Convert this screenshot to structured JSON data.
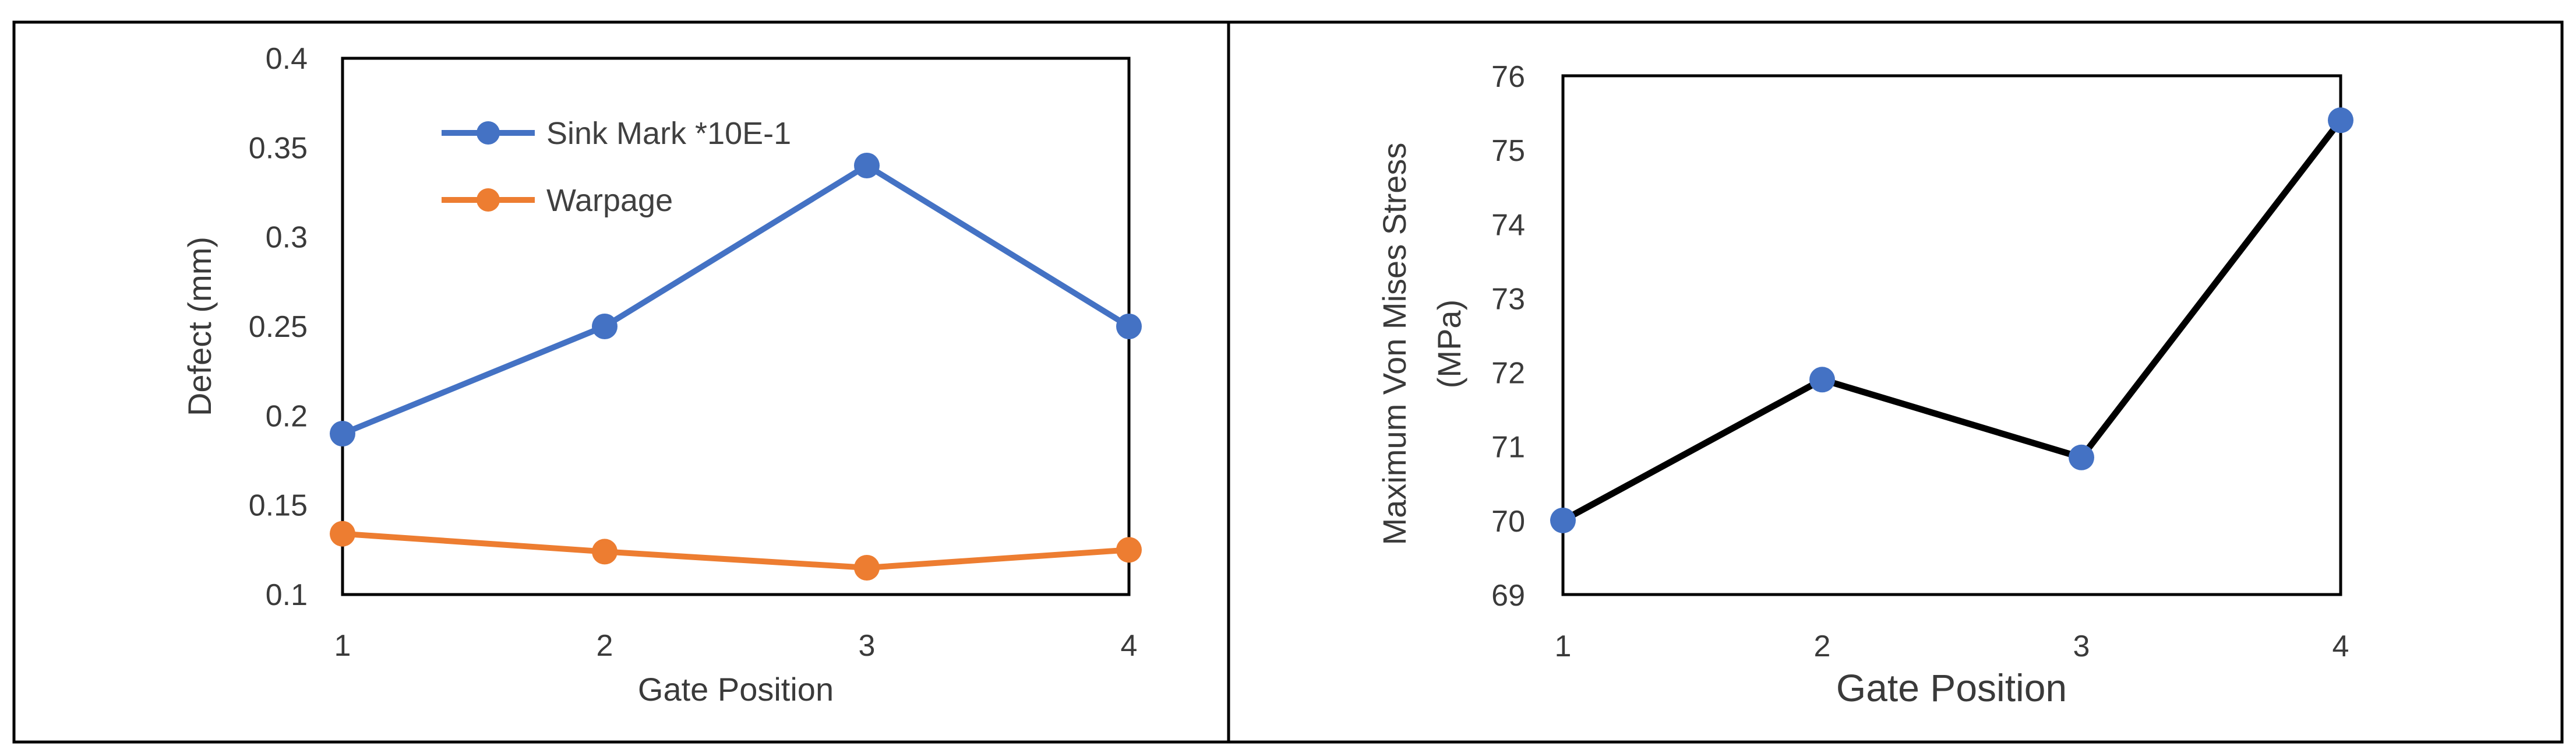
{
  "chart_data": [
    {
      "type": "line",
      "xlabel": "Gate Position",
      "ylabel": "Defect (mm)",
      "categories": [
        "1",
        "2",
        "3",
        "4"
      ],
      "ylim": [
        0.1,
        0.4
      ],
      "yticks": [
        "0.1",
        "0.15",
        "0.2",
        "0.25",
        "0.3",
        "0.35",
        "0.4"
      ],
      "grid": false,
      "legend_position": "top-left",
      "series": [
        {
          "name": "Sink Mark *10E-1",
          "color": "#4472C4",
          "values": [
            0.19,
            0.25,
            0.34,
            0.25
          ]
        },
        {
          "name": "Warpage",
          "color": "#ED7D31",
          "values": [
            0.134,
            0.124,
            0.115,
            0.125
          ]
        }
      ]
    },
    {
      "type": "line",
      "xlabel": "Gate Position",
      "ylabel_lines": [
        "Maximum Von Mises Stress",
        "(MPa)"
      ],
      "categories": [
        "1",
        "2",
        "3",
        "4"
      ],
      "ylim": [
        69,
        76
      ],
      "yticks": [
        "69",
        "70",
        "71",
        "72",
        "73",
        "74",
        "75",
        "76"
      ],
      "grid": false,
      "series": [
        {
          "line_color": "#000000",
          "marker_color": "#4472C4",
          "values": [
            70.0,
            71.9,
            70.85,
            75.4
          ]
        }
      ]
    }
  ]
}
